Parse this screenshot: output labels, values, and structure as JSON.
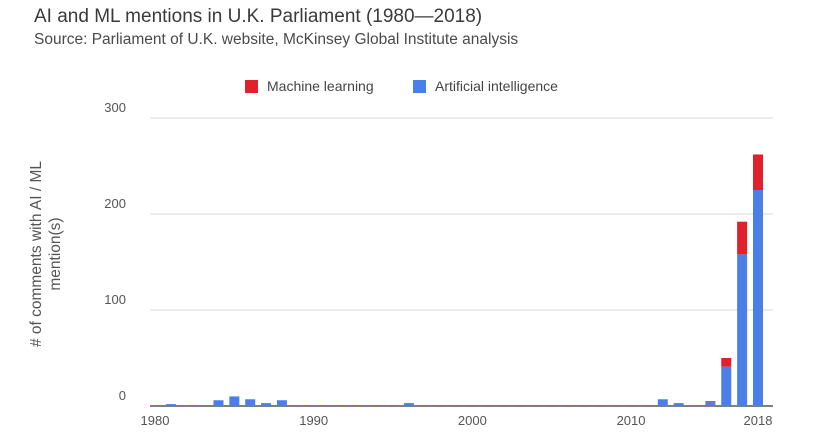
{
  "chart_data": {
    "type": "bar",
    "stacked": true,
    "title": "AI and ML mentions in U.K. Parliament (1980—2018)",
    "subtitle": "Source: Parliament of U.K. website, McKinsey Global Institute analysis",
    "xlabel": "",
    "ylabel_lines": [
      "# of comments with AI / ML",
      "mention(s)"
    ],
    "ylim": [
      0,
      300
    ],
    "y_ticks": [
      0,
      100,
      200,
      300
    ],
    "y_tick_labels": [
      "0",
      "100",
      "200",
      "300"
    ],
    "x_ticks": [
      1980,
      1990,
      2000,
      2010,
      2018
    ],
    "x_tick_labels": [
      "1980",
      "1990",
      "2000",
      "2010",
      "2018"
    ],
    "legend_position": "top",
    "series": [
      {
        "name": "Artificial intelligence",
        "color": "#4A7FE8",
        "x": [
          1980,
          1981,
          1982,
          1983,
          1984,
          1985,
          1986,
          1987,
          1988,
          1989,
          1990,
          1991,
          1992,
          1993,
          1994,
          1995,
          1996,
          1997,
          1998,
          1999,
          2000,
          2001,
          2002,
          2003,
          2004,
          2005,
          2006,
          2007,
          2008,
          2009,
          2010,
          2011,
          2012,
          2013,
          2014,
          2015,
          2016,
          2017,
          2018
        ],
        "values": [
          1,
          2,
          1,
          1,
          6,
          10,
          7,
          3,
          6,
          1,
          1,
          1,
          1,
          1,
          1,
          1,
          3,
          1,
          1,
          1,
          1,
          1,
          1,
          1,
          1,
          1,
          1,
          1,
          1,
          1,
          1,
          1,
          7,
          3,
          1,
          4,
          41,
          158,
          225
        ]
      },
      {
        "name": "Machine learning",
        "color": "#E0202A",
        "x": [
          1980,
          1981,
          1982,
          1983,
          1984,
          1985,
          1986,
          1987,
          1988,
          1989,
          1990,
          1991,
          1992,
          1993,
          1994,
          1995,
          1996,
          1997,
          1998,
          1999,
          2000,
          2001,
          2002,
          2003,
          2004,
          2005,
          2006,
          2007,
          2008,
          2009,
          2010,
          2011,
          2012,
          2013,
          2014,
          2015,
          2016,
          2017,
          2018
        ],
        "values": [
          0,
          0,
          0,
          0,
          0,
          0,
          0,
          0,
          0,
          0,
          0,
          0,
          0,
          0,
          0,
          0,
          0,
          0,
          0,
          0,
          0,
          0,
          0,
          0,
          0,
          0,
          0,
          0,
          0,
          0,
          0,
          0,
          0,
          0,
          0,
          1,
          9,
          34,
          37
        ]
      }
    ],
    "legend_order": [
      1,
      0
    ]
  }
}
